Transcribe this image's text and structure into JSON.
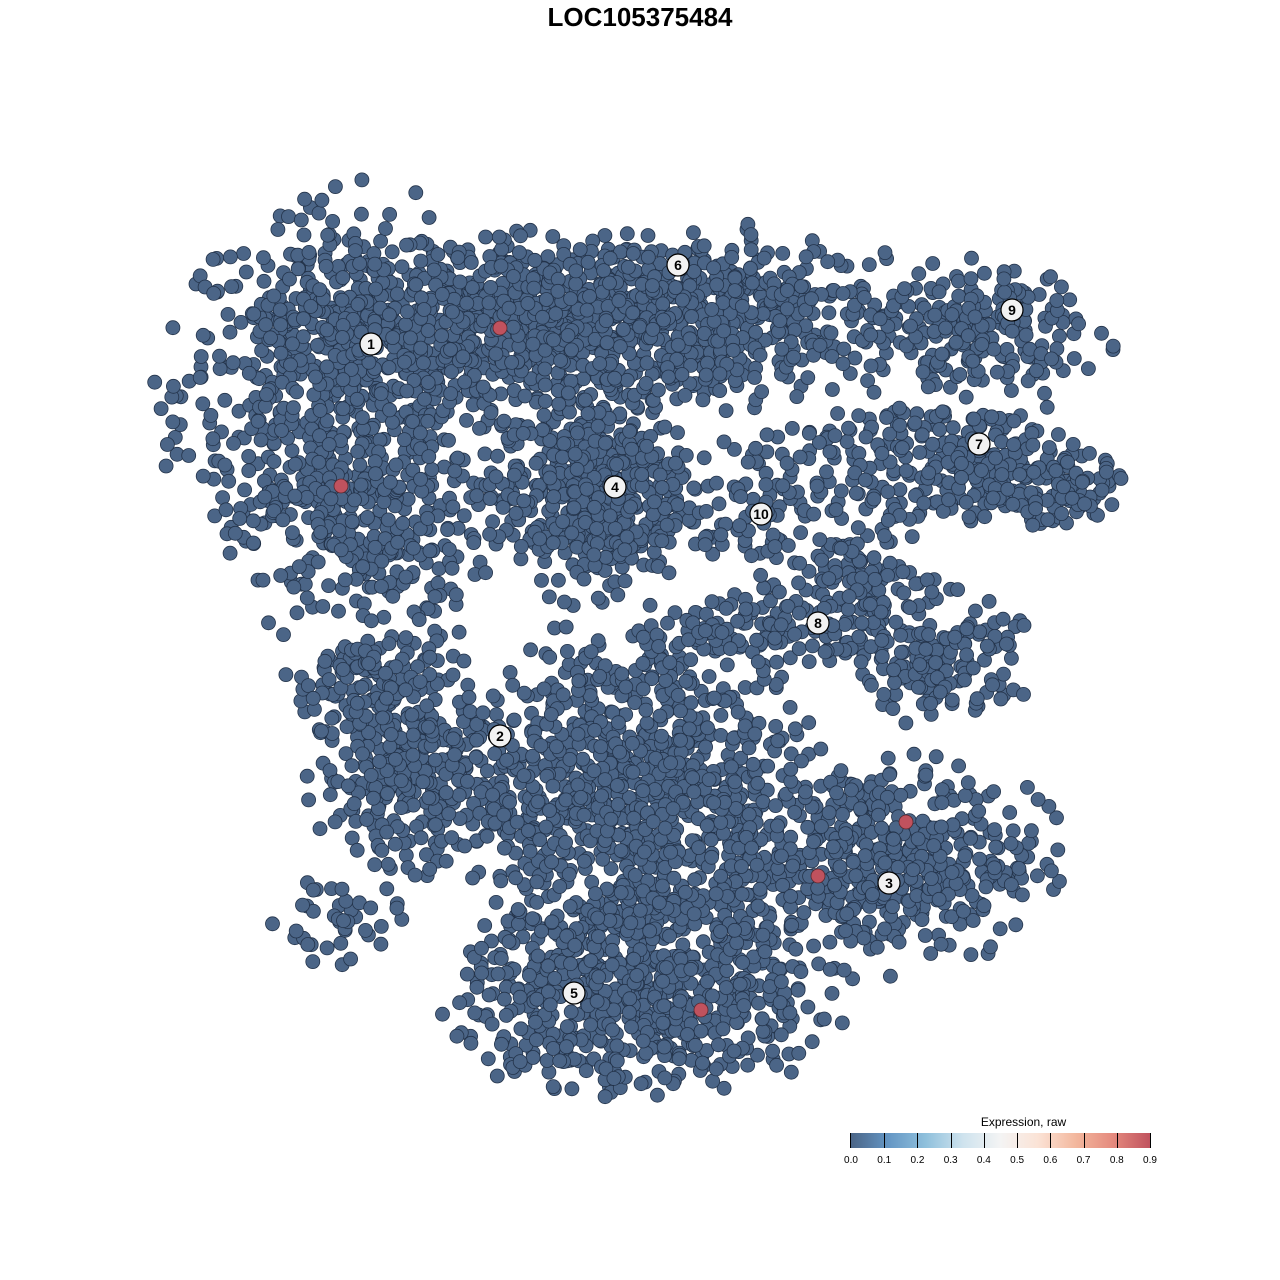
{
  "chart_data": {
    "type": "scatter",
    "title": "LOC105375484",
    "xlabel": "",
    "ylabel": "",
    "grid": false,
    "axes_visible": false,
    "point_color_default": "#4b6587",
    "highlight_color": "#c0525e",
    "clusters": [
      {
        "label": "1",
        "label_pos": [
          -26.9,
          29.6
        ],
        "blobs": [
          [
            -30,
            25,
            8,
            9,
            700
          ],
          [
            -27,
            10,
            6,
            5,
            200
          ]
        ]
      },
      {
        "label": "2",
        "label_pos": [
          -14,
          -9.6
        ],
        "blobs": [
          [
            -22,
            -14,
            5,
            4,
            300
          ],
          [
            -26,
            -5,
            5,
            3,
            150
          ],
          [
            -30,
            -28,
            3,
            2,
            40
          ]
        ]
      },
      {
        "label": "3",
        "label_pos": [
          24.9,
          -24.3
        ],
        "blobs": [
          [
            24,
            -22,
            8,
            5,
            500
          ]
        ]
      },
      {
        "label": "4",
        "label_pos": [
          -2.5,
          15.3
        ],
        "blobs": [
          [
            -5,
            15,
            5,
            5,
            500
          ]
        ]
      },
      {
        "label": "5",
        "label_pos": [
          -6.6,
          -35.3
        ],
        "blobs": [
          [
            0,
            -35,
            9,
            5,
            700
          ],
          [
            0,
            -15,
            8,
            8,
            900
          ]
        ]
      },
      {
        "label": "6",
        "label_pos": [
          3.8,
          37.5
        ],
        "blobs": [
          [
            -10,
            32,
            12,
            4,
            800
          ],
          [
            10,
            32,
            10,
            4,
            400
          ]
        ]
      },
      {
        "label": "7",
        "label_pos": [
          33.9,
          19.6
        ],
        "blobs": [
          [
            30,
            18,
            8,
            3,
            250
          ],
          [
            40,
            15,
            4,
            2,
            100
          ]
        ]
      },
      {
        "label": "8",
        "label_pos": [
          17.8,
          1.7
        ],
        "blobs": [
          [
            23,
            5,
            3,
            4,
            120
          ],
          [
            30,
            -2,
            4,
            3,
            150
          ],
          [
            12,
            1,
            6,
            2,
            100
          ]
        ]
      },
      {
        "label": "9",
        "label_pos": [
          37.2,
          33
        ],
        "blobs": [
          [
            34,
            31,
            6,
            3,
            200
          ]
        ]
      },
      {
        "label": "10",
        "label_pos": [
          12.1,
          12.6
        ],
        "blobs": [
          [
            12,
            13,
            3,
            4,
            80
          ]
        ]
      }
    ],
    "highlighted_points": [
      {
        "x": -14,
        "y": 31.2,
        "value": 0.9
      },
      {
        "x": -29.9,
        "y": 15.4,
        "value": 0.9
      },
      {
        "x": 26.6,
        "y": -18.2,
        "value": 0.9
      },
      {
        "x": 17.8,
        "y": -23.6,
        "value": 0.9
      },
      {
        "x": 6.1,
        "y": -37,
        "value": 0.9
      }
    ],
    "legend": {
      "title": "Expression, raw",
      "placement": "bottom-right",
      "range": [
        0,
        0.9
      ],
      "ticks": [
        "0.0",
        "0.1",
        "0.2",
        "0.3",
        "0.4",
        "0.5",
        "0.6",
        "0.7",
        "0.8",
        "0.9"
      ],
      "colors": [
        "#4b6587",
        "#6496c4",
        "#8fc0dc",
        "#cfe3ee",
        "#f4f4f4",
        "#fbe3d6",
        "#f3b89e",
        "#e58a7e",
        "#c0525e"
      ]
    }
  }
}
